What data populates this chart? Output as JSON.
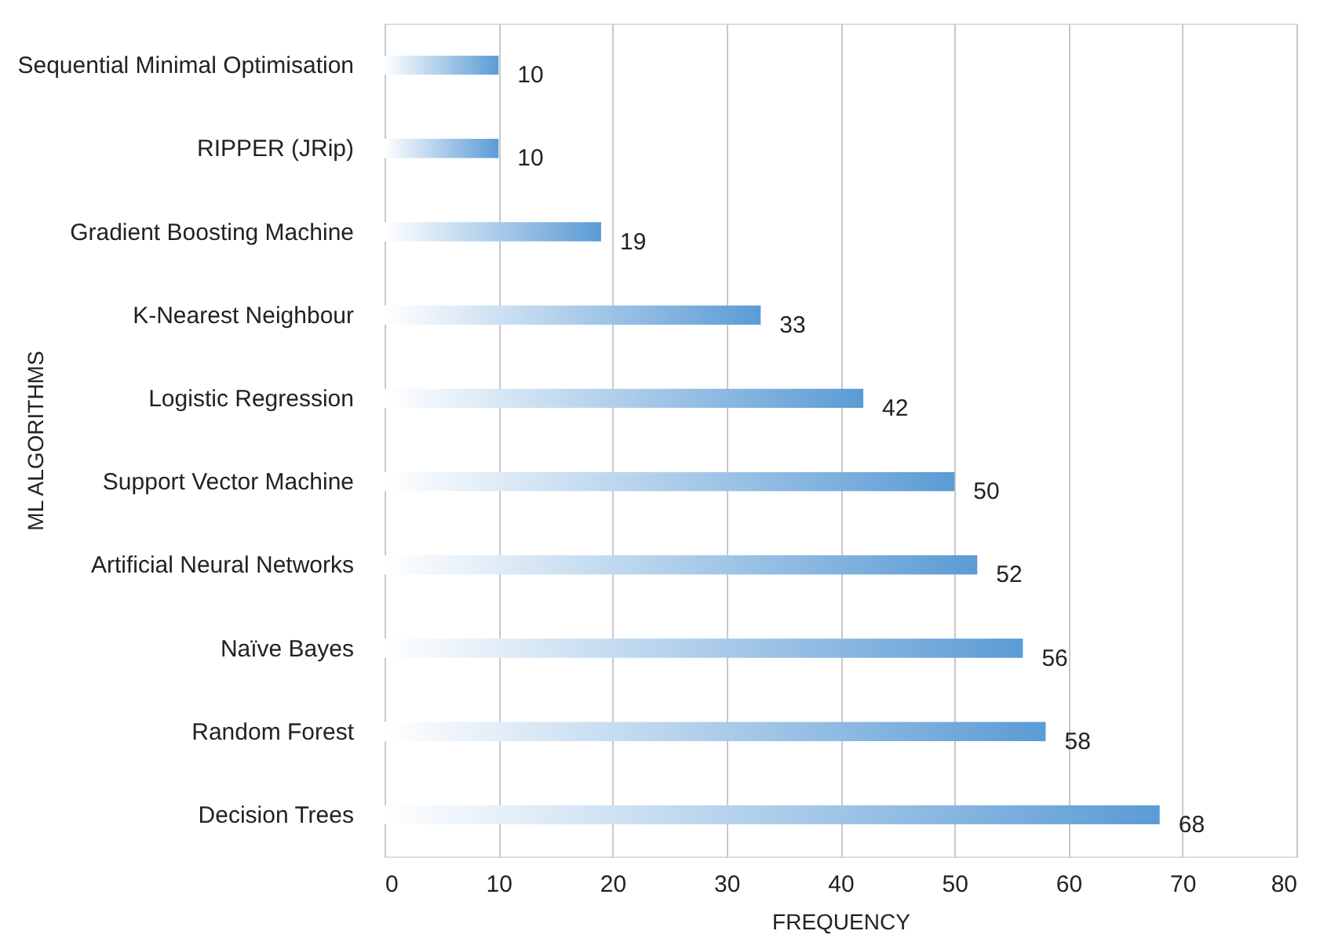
{
  "chart_data": {
    "type": "bar",
    "orientation": "horizontal",
    "xlabel": "FREQUENCY",
    "ylabel": "ML ALGORITHMS",
    "categories": [
      "Sequential Minimal Optimisation",
      "RIPPER (JRip)",
      "Gradient Boosting Machine",
      "K-Nearest Neighbour",
      "Logistic Regression",
      "Support Vector Machine",
      "Artificial Neural Networks",
      "Naïve Bayes",
      "Random Forest",
      "Decision Trees"
    ],
    "values": [
      10,
      10,
      19,
      33,
      42,
      50,
      52,
      56,
      58,
      68
    ],
    "color": "#5b9bd5",
    "xlim": [
      0,
      80
    ],
    "xticks": [
      0,
      10,
      20,
      30,
      40,
      50,
      60,
      70,
      80
    ],
    "grid": "x",
    "data_labels": true
  }
}
